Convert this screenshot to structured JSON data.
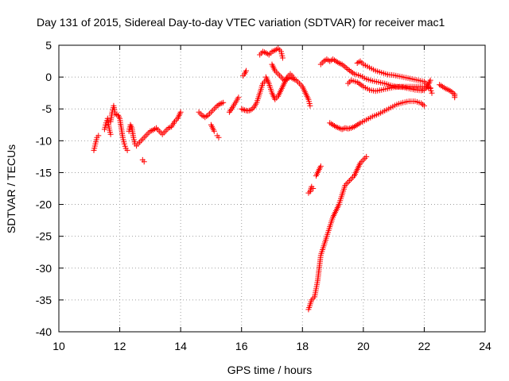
{
  "chart_data": {
    "type": "scatter",
    "title": "Day 131 of 2015, Sidereal Day-to-day VTEC variation (SDTVAR) for receiver mac1",
    "xlabel": "GPS time / hours",
    "ylabel": "SDTVAR / TECUs",
    "xlim": [
      10,
      24
    ],
    "ylim": [
      -40,
      5
    ],
    "xticks": [
      {
        "value": 10,
        "label": "10"
      },
      {
        "value": 12,
        "label": "12"
      },
      {
        "value": 14,
        "label": "14"
      },
      {
        "value": 16,
        "label": "16"
      },
      {
        "value": 18,
        "label": "18"
      },
      {
        "value": 20,
        "label": "20"
      },
      {
        "value": 22,
        "label": "22"
      },
      {
        "value": 24,
        "label": "24"
      }
    ],
    "yticks": [
      {
        "value": 5,
        "label": "5"
      },
      {
        "value": 0,
        "label": "0"
      },
      {
        "value": -5,
        "label": "-5"
      },
      {
        "value": -10,
        "label": "-10"
      },
      {
        "value": -15,
        "label": "-15"
      },
      {
        "value": -20,
        "label": "-20"
      },
      {
        "value": -25,
        "label": "-25"
      },
      {
        "value": -30,
        "label": "-30"
      },
      {
        "value": -35,
        "label": "-35"
      },
      {
        "value": -40,
        "label": "-40"
      }
    ],
    "grid": true,
    "marker": "plus",
    "color": "#ff0000",
    "segments": [
      {
        "points": [
          [
            11.15,
            -11.5
          ],
          [
            11.2,
            -10.5
          ],
          [
            11.25,
            -9.5
          ],
          [
            11.3,
            -9.2
          ]
        ]
      },
      {
        "points": [
          [
            11.5,
            -8.2
          ],
          [
            11.55,
            -7.2
          ],
          [
            11.6,
            -6.5
          ],
          [
            11.65,
            -8.0
          ],
          [
            11.7,
            -9.0
          ]
        ]
      },
      {
        "points": [
          [
            11.7,
            -7.0
          ],
          [
            11.75,
            -5.5
          ],
          [
            11.8,
            -4.5
          ],
          [
            11.85,
            -5.8
          ],
          [
            11.95,
            -6.0
          ],
          [
            12.0,
            -6.5
          ],
          [
            12.05,
            -8.0
          ],
          [
            12.1,
            -9.5
          ],
          [
            12.15,
            -10.5
          ],
          [
            12.2,
            -11.2
          ],
          [
            12.25,
            -11.5
          ]
        ]
      },
      {
        "points": [
          [
            12.3,
            -8.5
          ],
          [
            12.35,
            -7.5
          ],
          [
            12.4,
            -8.0
          ],
          [
            12.45,
            -9.5
          ],
          [
            12.5,
            -10.5
          ],
          [
            12.55,
            -10.8
          ],
          [
            12.6,
            -10.5
          ],
          [
            12.7,
            -10.0
          ],
          [
            12.8,
            -9.5
          ],
          [
            12.9,
            -9.0
          ],
          [
            13.0,
            -8.5
          ],
          [
            13.1,
            -8.3
          ],
          [
            13.2,
            -8.0
          ],
          [
            13.3,
            -8.5
          ],
          [
            13.4,
            -9.0
          ],
          [
            13.5,
            -8.5
          ],
          [
            13.6,
            -8.0
          ],
          [
            13.7,
            -7.8
          ],
          [
            13.8,
            -7.0
          ],
          [
            13.9,
            -6.5
          ],
          [
            14.0,
            -5.5
          ]
        ]
      },
      {
        "points": [
          [
            12.75,
            -13.0
          ],
          [
            12.8,
            -13.3
          ]
        ]
      },
      {
        "points": [
          [
            14.6,
            -5.5
          ],
          [
            14.7,
            -6.0
          ],
          [
            14.8,
            -6.3
          ],
          [
            14.9,
            -6.0
          ],
          [
            15.0,
            -5.5
          ],
          [
            15.1,
            -5.0
          ],
          [
            15.2,
            -4.5
          ],
          [
            15.3,
            -4.2
          ],
          [
            15.4,
            -4.0
          ]
        ]
      },
      {
        "points": [
          [
            15.0,
            -7.5
          ],
          [
            15.05,
            -8.0
          ],
          [
            15.1,
            -8.5
          ]
        ]
      },
      {
        "points": [
          [
            15.2,
            -9.2
          ],
          [
            15.25,
            -9.5
          ]
        ]
      },
      {
        "points": [
          [
            15.6,
            -5.5
          ],
          [
            15.7,
            -4.8
          ],
          [
            15.8,
            -4.0
          ],
          [
            15.9,
            -3.2
          ]
        ]
      },
      {
        "points": [
          [
            16.0,
            -5.0
          ],
          [
            16.1,
            -5.2
          ],
          [
            16.2,
            -5.3
          ],
          [
            16.3,
            -5.2
          ],
          [
            16.4,
            -4.8
          ],
          [
            16.5,
            -4.0
          ],
          [
            16.6,
            -2.5
          ],
          [
            16.7,
            -1.0
          ],
          [
            16.8,
            -0.5
          ]
        ]
      },
      {
        "points": [
          [
            16.05,
            0.2
          ],
          [
            16.1,
            0.5
          ],
          [
            16.15,
            1.0
          ]
        ]
      },
      {
        "points": [
          [
            16.6,
            3.5
          ],
          [
            16.7,
            4.0
          ],
          [
            16.8,
            3.8
          ],
          [
            16.9,
            3.5
          ],
          [
            17.0,
            4.0
          ],
          [
            17.1,
            4.2
          ],
          [
            17.2,
            4.5
          ],
          [
            17.3,
            4.0
          ],
          [
            17.35,
            3.0
          ]
        ]
      },
      {
        "points": [
          [
            17.0,
            2.0
          ],
          [
            17.1,
            1.0
          ],
          [
            17.2,
            0.5
          ],
          [
            17.3,
            0.0
          ],
          [
            17.4,
            -0.5
          ],
          [
            17.5,
            -0.3
          ],
          [
            17.6,
            0.0
          ],
          [
            17.7,
            -0.3
          ],
          [
            17.8,
            -0.5
          ],
          [
            17.9,
            -1.0
          ],
          [
            18.0,
            -1.5
          ],
          [
            18.1,
            -2.5
          ],
          [
            18.2,
            -3.5
          ],
          [
            18.25,
            -4.5
          ]
        ]
      },
      {
        "points": [
          [
            16.8,
            0.0
          ],
          [
            16.9,
            -1.0
          ],
          [
            17.0,
            -2.5
          ],
          [
            17.1,
            -3.5
          ],
          [
            17.2,
            -3.0
          ],
          [
            17.3,
            -2.0
          ],
          [
            17.4,
            -1.0
          ],
          [
            17.5,
            0.0
          ],
          [
            17.6,
            0.5
          ],
          [
            17.7,
            0.0
          ]
        ]
      },
      {
        "points": [
          [
            18.2,
            -36.5
          ],
          [
            18.3,
            -35.0
          ],
          [
            18.4,
            -34.5
          ],
          [
            18.5,
            -32.0
          ],
          [
            18.6,
            -28.0
          ],
          [
            18.7,
            -26.5
          ],
          [
            18.8,
            -25.0
          ],
          [
            18.9,
            -23.5
          ],
          [
            19.0,
            -22.0
          ],
          [
            19.1,
            -21.0
          ],
          [
            19.2,
            -20.0
          ],
          [
            19.3,
            -18.5
          ],
          [
            19.4,
            -17.0
          ],
          [
            19.5,
            -16.5
          ],
          [
            19.6,
            -16.0
          ],
          [
            19.7,
            -15.5
          ],
          [
            19.8,
            -14.5
          ],
          [
            19.9,
            -13.5
          ],
          [
            20.0,
            -13.0
          ],
          [
            20.1,
            -12.5
          ]
        ]
      },
      {
        "points": [
          [
            18.2,
            -18.2
          ],
          [
            18.25,
            -18.0
          ],
          [
            18.3,
            -17.2
          ],
          [
            18.35,
            -17.5
          ]
        ]
      },
      {
        "points": [
          [
            18.45,
            -15.5
          ],
          [
            18.5,
            -15.0
          ],
          [
            18.55,
            -14.5
          ],
          [
            18.6,
            -14.0
          ]
        ]
      },
      {
        "points": [
          [
            18.6,
            2.0
          ],
          [
            18.7,
            2.5
          ],
          [
            18.8,
            2.8
          ],
          [
            18.9,
            2.5
          ],
          [
            19.0,
            2.8
          ],
          [
            19.1,
            2.5
          ],
          [
            19.2,
            2.2
          ],
          [
            19.3,
            2.0
          ],
          [
            19.5,
            1.2
          ],
          [
            19.7,
            0.5
          ],
          [
            19.9,
            0.2
          ],
          [
            20.1,
            -0.3
          ],
          [
            20.3,
            -0.6
          ],
          [
            20.5,
            -0.8
          ],
          [
            20.7,
            -1.0
          ],
          [
            20.9,
            -1.3
          ],
          [
            21.1,
            -1.5
          ],
          [
            21.3,
            -1.6
          ],
          [
            21.5,
            -1.8
          ],
          [
            21.7,
            -2.0
          ],
          [
            21.9,
            -2.1
          ],
          [
            22.0,
            -2.0
          ],
          [
            22.1,
            -1.5
          ],
          [
            22.2,
            -0.5
          ]
        ]
      },
      {
        "points": [
          [
            19.8,
            2.2
          ],
          [
            19.9,
            2.5
          ],
          [
            20.0,
            2.0
          ],
          [
            20.2,
            1.5
          ],
          [
            20.4,
            1.0
          ],
          [
            20.6,
            0.7
          ],
          [
            20.8,
            0.4
          ],
          [
            21.0,
            0.3
          ],
          [
            21.2,
            0.1
          ],
          [
            21.4,
            -0.1
          ],
          [
            21.6,
            -0.3
          ],
          [
            21.8,
            -0.5
          ],
          [
            22.0,
            -0.7
          ],
          [
            22.1,
            -1.2
          ],
          [
            22.2,
            -1.8
          ],
          [
            22.25,
            -2.5
          ]
        ]
      },
      {
        "points": [
          [
            19.5,
            -1.0
          ],
          [
            19.6,
            -0.5
          ],
          [
            19.8,
            -0.8
          ],
          [
            20.0,
            -1.5
          ],
          [
            20.2,
            -2.0
          ],
          [
            20.4,
            -2.2
          ],
          [
            20.6,
            -2.0
          ],
          [
            20.8,
            -1.8
          ],
          [
            21.0,
            -1.6
          ],
          [
            21.2,
            -1.5
          ],
          [
            21.4,
            -1.5
          ],
          [
            21.6,
            -1.5
          ],
          [
            21.8,
            -1.5
          ],
          [
            22.0,
            -1.5
          ],
          [
            22.2,
            -1.7
          ]
        ]
      },
      {
        "points": [
          [
            18.9,
            -7.2
          ],
          [
            19.0,
            -7.5
          ],
          [
            19.1,
            -7.8
          ],
          [
            19.2,
            -8.0
          ],
          [
            19.3,
            -8.2
          ],
          [
            19.4,
            -8.0
          ],
          [
            19.5,
            -8.1
          ],
          [
            19.6,
            -8.0
          ],
          [
            19.7,
            -7.8
          ],
          [
            19.9,
            -7.2
          ],
          [
            20.1,
            -6.7
          ],
          [
            20.3,
            -6.2
          ],
          [
            20.5,
            -5.8
          ],
          [
            20.7,
            -5.3
          ],
          [
            20.9,
            -4.8
          ],
          [
            21.1,
            -4.3
          ],
          [
            21.3,
            -4.0
          ],
          [
            21.5,
            -3.8
          ],
          [
            21.7,
            -3.8
          ],
          [
            21.9,
            -4.1
          ],
          [
            22.0,
            -4.5
          ]
        ]
      },
      {
        "points": [
          [
            22.5,
            -1.2
          ],
          [
            22.6,
            -1.5
          ],
          [
            22.7,
            -1.8
          ],
          [
            22.8,
            -2.0
          ],
          [
            22.9,
            -2.3
          ],
          [
            23.0,
            -2.7
          ],
          [
            23.0,
            -3.2
          ]
        ]
      }
    ]
  }
}
